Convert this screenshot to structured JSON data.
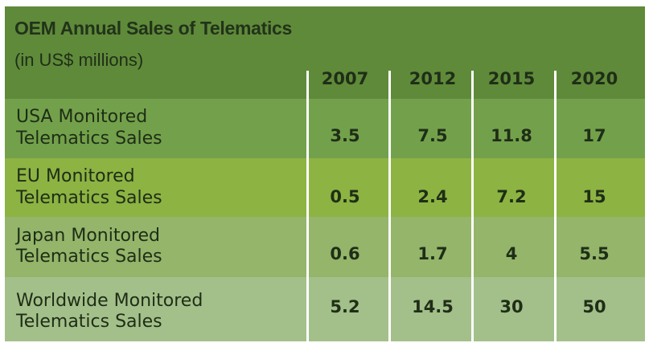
{
  "chart_data": {
    "type": "table",
    "title": "OEM Annual Sales of Telematics",
    "subtitle": "(in US$ millions)",
    "columns": [
      "2007",
      "2012",
      "2015",
      "2020"
    ],
    "rows": [
      {
        "label_line1": "USA Monitored",
        "label_line2": "Telematics Sales",
        "values": [
          "3.5",
          "7.5",
          "11.8",
          "17"
        ]
      },
      {
        "label_line1": "EU Monitored",
        "label_line2": "Telematics Sales",
        "values": [
          "0.5",
          "2.4",
          "7.2",
          "15"
        ]
      },
      {
        "label_line1": "Japan Monitored",
        "label_line2": "Telematics Sales",
        "values": [
          "0.6",
          "1.7",
          "4",
          "5.5"
        ]
      },
      {
        "label_line1": "Worldwide Monitored",
        "label_line2": "Telematics Sales",
        "values": [
          "5.2",
          "14.5",
          "30",
          "50"
        ]
      }
    ]
  },
  "colors": {
    "header_bg": "#5f8a3a",
    "row_bgs": [
      "#73a14b",
      "#8db343",
      "#94b56a",
      "#a4c08a"
    ],
    "text": "#1f2e17",
    "divider": "#ffffff"
  }
}
